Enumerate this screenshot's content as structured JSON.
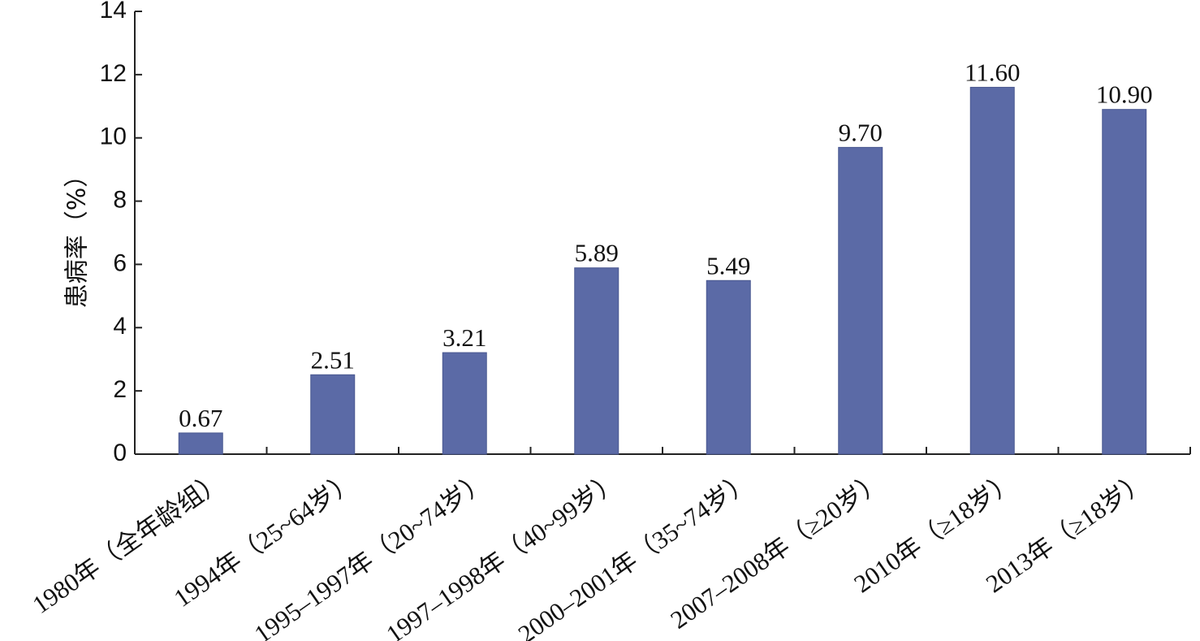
{
  "chart_data": {
    "type": "bar",
    "categories": [
      "1980年（全年龄组）",
      "1994年（25~64岁）",
      "1995–1997年（20~74岁）",
      "1997–1998年（40~99岁）",
      "2000–2001年（35~74岁）",
      "2007–2008年（≥20岁）",
      "2010年（≥18岁）",
      "2013年（≥18岁）"
    ],
    "values": [
      0.67,
      2.51,
      3.21,
      5.89,
      5.49,
      9.7,
      11.6,
      10.9
    ],
    "value_labels": [
      "0.67",
      "2.51",
      "3.21",
      "5.89",
      "5.49",
      "9.70",
      "11.60",
      "10.90"
    ],
    "title": "",
    "xlabel": "",
    "ylabel": "患病率（%）",
    "ylim": [
      0,
      14
    ],
    "yticks": [
      0,
      2,
      4,
      6,
      8,
      10,
      12,
      14
    ],
    "grid": false,
    "legend": "none",
    "bar_color": "#5b6aa6"
  }
}
